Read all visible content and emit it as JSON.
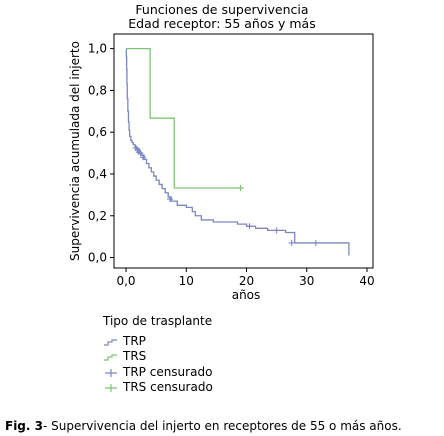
{
  "chart_data": {
    "type": "line",
    "title": "Funciones de supervivencia",
    "subtitle": "Edad receptor: 55 años y más",
    "xlabel": "años",
    "ylabel": "Supervivencia acumulada del injerto",
    "xlim": [
      -2,
      41
    ],
    "ylim": [
      -0.05,
      1.07
    ],
    "xticks": [
      0,
      10,
      20,
      30,
      40
    ],
    "xtick_labels": [
      "0,0",
      "10",
      "20",
      "30",
      "40"
    ],
    "yticks": [
      0.0,
      0.2,
      0.4,
      0.6,
      0.8,
      1.0
    ],
    "ytick_labels": [
      "0,0",
      "0,2",
      "0,4",
      "0,6",
      "0,8",
      "1,0"
    ],
    "grid": false,
    "series": [
      {
        "name": "TRP",
        "color": "#7b87c3",
        "step": true,
        "x": [
          0,
          0.05,
          0.1,
          0.15,
          0.2,
          0.3,
          0.4,
          0.5,
          0.6,
          0.8,
          1.0,
          1.2,
          1.5,
          1.8,
          2.2,
          2.6,
          3.0,
          3.4,
          3.8,
          4.2,
          4.6,
          5.0,
          5.5,
          6.0,
          6.5,
          7.0,
          7.5,
          8.5,
          10.0,
          11.0,
          11.5,
          12.5,
          14.5,
          18.5,
          20.0,
          21.5,
          23.5,
          26.5,
          28.0,
          31.0,
          37.0
        ],
        "y": [
          1.0,
          0.96,
          0.9,
          0.83,
          0.76,
          0.7,
          0.65,
          0.61,
          0.58,
          0.56,
          0.55,
          0.54,
          0.53,
          0.52,
          0.5,
          0.49,
          0.47,
          0.45,
          0.43,
          0.41,
          0.39,
          0.37,
          0.35,
          0.33,
          0.31,
          0.29,
          0.27,
          0.25,
          0.24,
          0.22,
          0.2,
          0.18,
          0.17,
          0.16,
          0.15,
          0.14,
          0.13,
          0.12,
          0.07,
          0.07,
          0.01
        ]
      },
      {
        "name": "TRS",
        "color": "#7dc475",
        "step": true,
        "x": [
          0,
          4.0,
          8.0,
          19.5
        ],
        "y": [
          1.0,
          0.667,
          0.333,
          0.333
        ]
      }
    ],
    "censored": [
      {
        "name": "TRP censurado",
        "color": "#7b87c3",
        "x": [
          1.6,
          1.9,
          2.1,
          2.4,
          2.8,
          7.3,
          20.5,
          25.0,
          27.5,
          31.5
        ],
        "y": [
          0.525,
          0.515,
          0.505,
          0.5,
          0.48,
          0.28,
          0.15,
          0.13,
          0.07,
          0.07
        ]
      },
      {
        "name": "TRS censurado",
        "color": "#7dc475",
        "x": [
          19.0
        ],
        "y": [
          0.333
        ]
      }
    ],
    "legend": {
      "title": "Tipo de trasplante",
      "entries": [
        "TRP",
        "TRS",
        "TRP censurado",
        "TRS censurado"
      ],
      "placement": "bottom-left"
    }
  },
  "caption": {
    "label": "Fig. 3",
    "text": "- Supervivencia del injerto en receptores de 55 o más años."
  }
}
